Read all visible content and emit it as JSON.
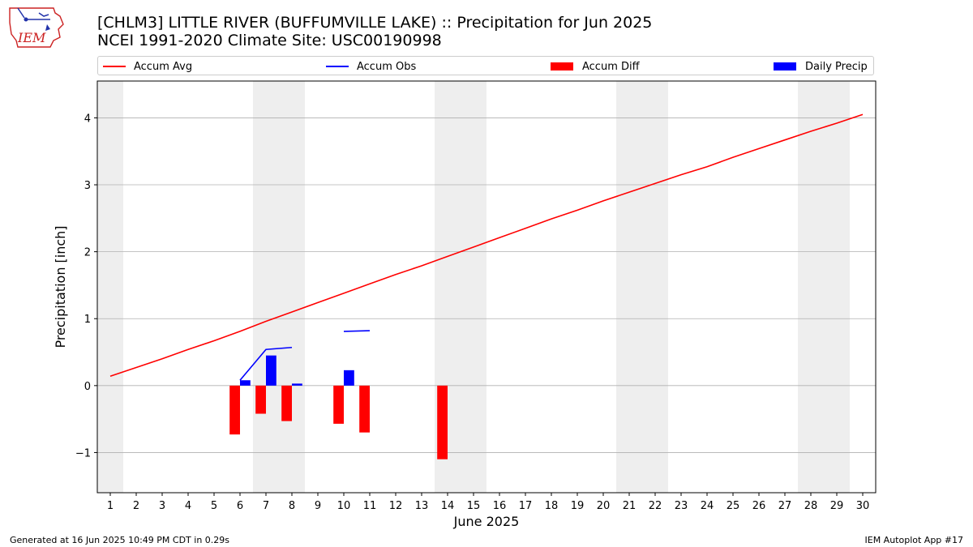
{
  "header": {
    "title_line1": "[CHLM3] LITTLE RIVER (BUFFUMVILLE LAKE) :: Precipitation for Jun 2025",
    "title_line2": "NCEI 1991-2020 Climate Site: USC00190998",
    "logo_text": "IEM"
  },
  "colors": {
    "accum_avg": "#ff0000",
    "accum_obs": "#0000ff",
    "accum_diff": "#ff0000",
    "daily_precip": "#0000ff",
    "weekend_shade": "#eeeeee",
    "grid": "#b0b0b0"
  },
  "footer": {
    "left": "Generated at 16 Jun 2025 10:49 PM CDT in 0.29s",
    "right": "IEM Autoplot App #17"
  },
  "chart_data": {
    "type": "bar",
    "xlabel": "June 2025",
    "ylabel": "Precipitation [inch]",
    "xlim": [
      0.5,
      30.5
    ],
    "ylim": [
      -1.6,
      4.55
    ],
    "x_ticks": [
      1,
      2,
      3,
      4,
      5,
      6,
      7,
      8,
      9,
      10,
      11,
      12,
      13,
      14,
      15,
      16,
      17,
      18,
      19,
      20,
      21,
      22,
      23,
      24,
      25,
      26,
      27,
      28,
      29,
      30
    ],
    "y_ticks": [
      -1,
      0,
      1,
      2,
      3,
      4
    ],
    "y_tick_labels": [
      "−1",
      "0",
      "1",
      "2",
      "3",
      "4"
    ],
    "grid": "horizontal",
    "legend_position": "top",
    "weekend_days": [
      1,
      7,
      8,
      14,
      15,
      21,
      22,
      28,
      29
    ],
    "series": [
      {
        "name": "Accum Avg",
        "kind": "line",
        "x": [
          1,
          2,
          3,
          4,
          5,
          6,
          7,
          8,
          9,
          10,
          11,
          12,
          13,
          14,
          15,
          16,
          17,
          18,
          19,
          20,
          21,
          22,
          23,
          24,
          25,
          26,
          27,
          28,
          29,
          30
        ],
        "values": [
          0.14,
          0.27,
          0.4,
          0.54,
          0.67,
          0.81,
          0.96,
          1.1,
          1.24,
          1.38,
          1.52,
          1.66,
          1.79,
          1.93,
          2.07,
          2.21,
          2.35,
          2.49,
          2.62,
          2.76,
          2.89,
          3.02,
          3.15,
          3.27,
          3.41,
          3.54,
          3.67,
          3.8,
          3.92,
          4.05
        ]
      },
      {
        "name": "Accum Obs",
        "kind": "line",
        "segments": [
          {
            "x": [
              6,
              7,
              8
            ],
            "values": [
              0.08,
              0.54,
              0.57
            ]
          },
          {
            "x": [
              10,
              11
            ],
            "values": [
              0.81,
              0.82
            ]
          }
        ]
      },
      {
        "name": "Accum Diff",
        "kind": "bar",
        "x": [
          6,
          7,
          8,
          10,
          11,
          14
        ],
        "values": [
          -0.73,
          -0.42,
          -0.53,
          -0.57,
          -0.7,
          -1.1
        ]
      },
      {
        "name": "Daily Precip",
        "kind": "bar",
        "x": [
          6,
          7,
          8,
          10
        ],
        "values": [
          0.08,
          0.45,
          0.03,
          0.23
        ]
      }
    ]
  }
}
